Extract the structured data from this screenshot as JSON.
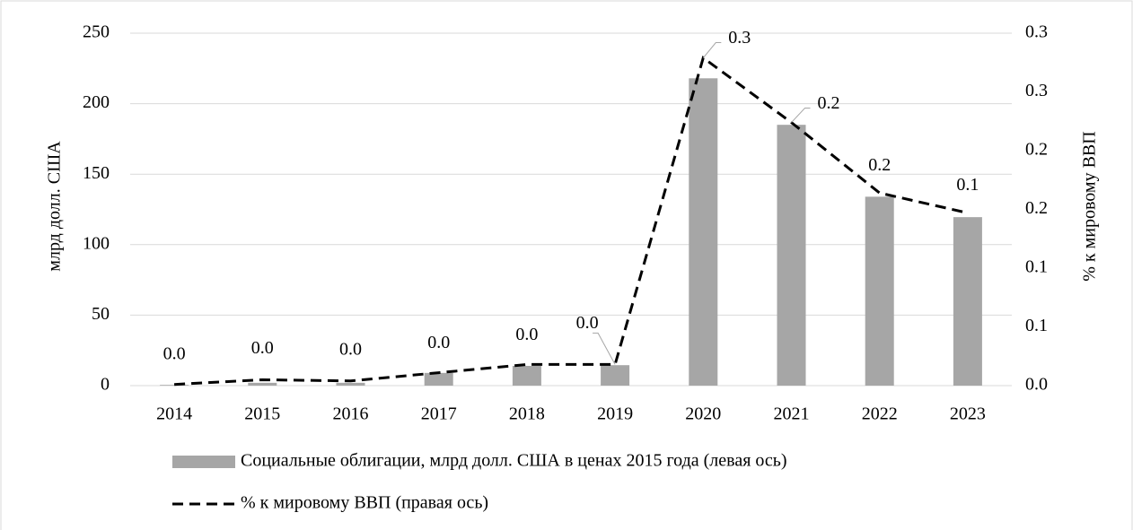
{
  "chart_data": {
    "type": "bar_line",
    "categories": [
      "2014",
      "2015",
      "2016",
      "2017",
      "2018",
      "2019",
      "2020",
      "2021",
      "2022",
      "2023"
    ],
    "series": [
      {
        "name": "Социальные облигации, млрд долл. США в ценах 2015 года (левая ось)",
        "type": "bar",
        "color": "#a6a6a6",
        "values": [
          0.5,
          2,
          2,
          9,
          14,
          14.5,
          218,
          185,
          134,
          119.5
        ]
      },
      {
        "name": "% к мировому ВВП (правая ось)",
        "type": "line",
        "axis": "y2",
        "color": "#000000",
        "dashed": true,
        "values": [
          0.001,
          0.005,
          0.004,
          0.011,
          0.018,
          0.018,
          0.279,
          0.224,
          0.164,
          0.147
        ],
        "value_labels": [
          "0.0",
          "0.0",
          "0.0",
          "0.0",
          "0.0",
          "0.0",
          "0.3",
          "0.2",
          "0.2",
          "0.1"
        ]
      }
    ],
    "ylabel": "млрд долл. США",
    "y2label": "% к мировому ВВП",
    "ylim": [
      0,
      250
    ],
    "yticks": [
      0,
      50,
      100,
      150,
      200,
      250
    ],
    "y2lim": [
      0,
      0.3
    ],
    "y2ticks": [
      {
        "value": 0,
        "label": "0.0"
      },
      {
        "value": 0.05,
        "label": "0.1"
      },
      0.1,
      {
        "value": 0.15,
        "label": "0.2"
      },
      0.2,
      {
        "value": 0.25,
        "label": "0.3"
      },
      0.3
    ],
    "grid": true,
    "legend": "bottom"
  }
}
